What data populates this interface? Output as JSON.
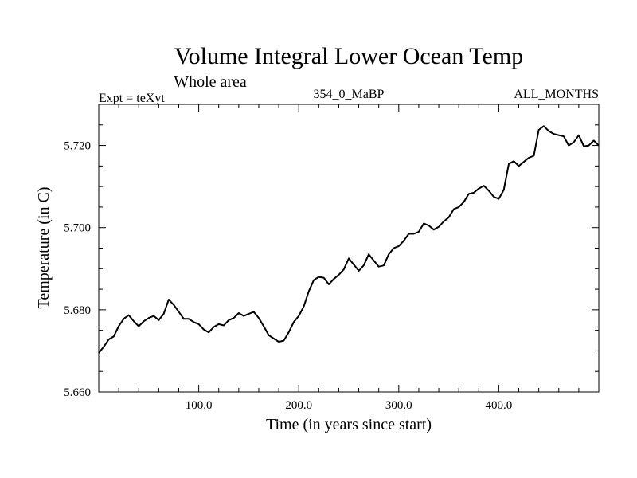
{
  "chart_data": {
    "type": "line",
    "title": "Volume Integral Lower Ocean Temp",
    "subtitle": "Whole area",
    "experiment_label": "Expt = teXyt",
    "run_label": "354_0_MaBP",
    "period_label": "ALL_MONTHS",
    "xlabel": "Time (in years since start)",
    "ylabel": "Temperature (in C)",
    "xlim": [
      0,
      500
    ],
    "ylim": [
      5.66,
      5.73
    ],
    "x_ticks": [
      {
        "value": 100,
        "label": "100.0"
      },
      {
        "value": 200,
        "label": "200.0"
      },
      {
        "value": 300,
        "label": "300.0"
      },
      {
        "value": 400,
        "label": "400.0"
      }
    ],
    "y_ticks": [
      {
        "value": 5.66,
        "label": "5.660"
      },
      {
        "value": 5.68,
        "label": "5.680"
      },
      {
        "value": 5.7,
        "label": "5.700"
      },
      {
        "value": 5.72,
        "label": "5.720"
      }
    ],
    "grid": false,
    "line_color": "#000000",
    "series": [
      {
        "points": [
          [
            0,
            5.6695
          ],
          [
            5,
            5.671
          ],
          [
            10,
            5.6728
          ],
          [
            15,
            5.6735
          ],
          [
            20,
            5.676
          ],
          [
            25,
            5.6778
          ],
          [
            30,
            5.6787
          ],
          [
            35,
            5.6772
          ],
          [
            40,
            5.676
          ],
          [
            45,
            5.6772
          ],
          [
            50,
            5.678
          ],
          [
            55,
            5.6785
          ],
          [
            60,
            5.6775
          ],
          [
            65,
            5.679
          ],
          [
            70,
            5.6825
          ],
          [
            75,
            5.6812
          ],
          [
            80,
            5.6795
          ],
          [
            85,
            5.6778
          ],
          [
            90,
            5.6778
          ],
          [
            95,
            5.677
          ],
          [
            100,
            5.6765
          ],
          [
            105,
            5.6752
          ],
          [
            110,
            5.6745
          ],
          [
            115,
            5.6758
          ],
          [
            120,
            5.6765
          ],
          [
            125,
            5.6762
          ],
          [
            130,
            5.6775
          ],
          [
            135,
            5.678
          ],
          [
            140,
            5.6792
          ],
          [
            145,
            5.6785
          ],
          [
            150,
            5.679
          ],
          [
            155,
            5.6795
          ],
          [
            160,
            5.678
          ],
          [
            165,
            5.676
          ],
          [
            170,
            5.6738
          ],
          [
            175,
            5.673
          ],
          [
            180,
            5.6722
          ],
          [
            185,
            5.6725
          ],
          [
            190,
            5.6745
          ],
          [
            195,
            5.677
          ],
          [
            200,
            5.6785
          ],
          [
            205,
            5.6808
          ],
          [
            210,
            5.6845
          ],
          [
            215,
            5.6872
          ],
          [
            220,
            5.688
          ],
          [
            225,
            5.6878
          ],
          [
            230,
            5.6862
          ],
          [
            235,
            5.6875
          ],
          [
            240,
            5.6885
          ],
          [
            245,
            5.6898
          ],
          [
            250,
            5.6925
          ],
          [
            255,
            5.691
          ],
          [
            260,
            5.6895
          ],
          [
            265,
            5.6908
          ],
          [
            270,
            5.6935
          ],
          [
            275,
            5.692
          ],
          [
            280,
            5.6905
          ],
          [
            285,
            5.6908
          ],
          [
            290,
            5.6935
          ],
          [
            295,
            5.695
          ],
          [
            300,
            5.6955
          ],
          [
            305,
            5.6968
          ],
          [
            310,
            5.6985
          ],
          [
            315,
            5.6985
          ],
          [
            320,
            5.699
          ],
          [
            325,
            5.701
          ],
          [
            330,
            5.7005
          ],
          [
            335,
            5.6995
          ],
          [
            340,
            5.7002
          ],
          [
            345,
            5.7015
          ],
          [
            350,
            5.7025
          ],
          [
            355,
            5.7045
          ],
          [
            360,
            5.705
          ],
          [
            365,
            5.7062
          ],
          [
            370,
            5.7082
          ],
          [
            375,
            5.7085
          ],
          [
            380,
            5.7095
          ],
          [
            385,
            5.7102
          ],
          [
            390,
            5.709
          ],
          [
            395,
            5.7075
          ],
          [
            400,
            5.707
          ],
          [
            405,
            5.7092
          ],
          [
            410,
            5.7155
          ],
          [
            415,
            5.7162
          ],
          [
            420,
            5.715
          ],
          [
            425,
            5.716
          ],
          [
            430,
            5.717
          ],
          [
            435,
            5.7175
          ],
          [
            440,
            5.7238
          ],
          [
            445,
            5.7247
          ],
          [
            450,
            5.7235
          ],
          [
            455,
            5.7228
          ],
          [
            460,
            5.7225
          ],
          [
            465,
            5.7222
          ],
          [
            470,
            5.72
          ],
          [
            475,
            5.7208
          ],
          [
            480,
            5.7225
          ],
          [
            485,
            5.7198
          ],
          [
            490,
            5.72
          ],
          [
            495,
            5.7212
          ],
          [
            500,
            5.72
          ]
        ]
      }
    ]
  }
}
